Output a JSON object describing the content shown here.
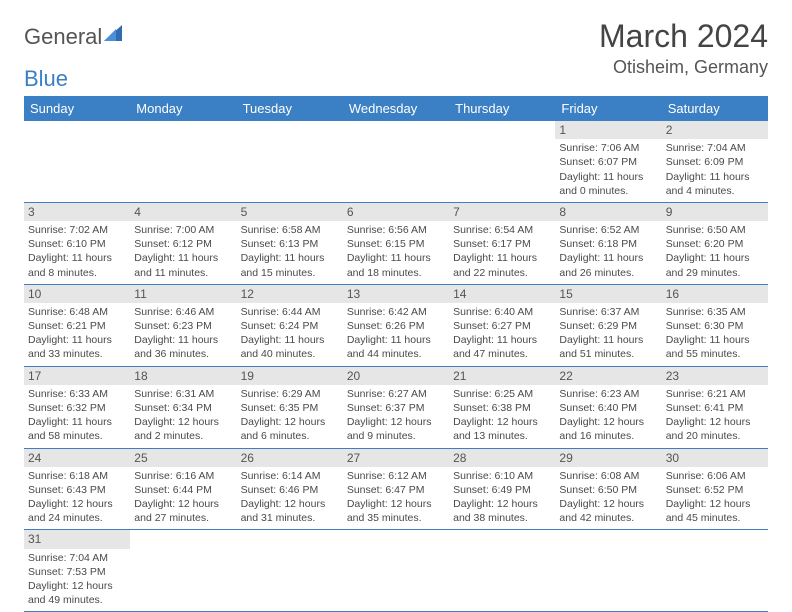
{
  "brand": {
    "text1": "General",
    "text2": "Blue"
  },
  "title": "March 2024",
  "location": "Otisheim, Germany",
  "colors": {
    "header_bg": "#3b7fc4",
    "header_fg": "#ffffff",
    "daynum_bg": "#e6e6e6",
    "row_divider": "#3b7fc4",
    "text": "#4a4a4a"
  },
  "weekdays": [
    "Sunday",
    "Monday",
    "Tuesday",
    "Wednesday",
    "Thursday",
    "Friday",
    "Saturday"
  ],
  "weeks": [
    [
      null,
      null,
      null,
      null,
      null,
      {
        "n": "1",
        "sunrise": "7:06 AM",
        "sunset": "6:07 PM",
        "day_h": "11",
        "day_m": "0"
      },
      {
        "n": "2",
        "sunrise": "7:04 AM",
        "sunset": "6:09 PM",
        "day_h": "11",
        "day_m": "4"
      }
    ],
    [
      {
        "n": "3",
        "sunrise": "7:02 AM",
        "sunset": "6:10 PM",
        "day_h": "11",
        "day_m": "8"
      },
      {
        "n": "4",
        "sunrise": "7:00 AM",
        "sunset": "6:12 PM",
        "day_h": "11",
        "day_m": "11"
      },
      {
        "n": "5",
        "sunrise": "6:58 AM",
        "sunset": "6:13 PM",
        "day_h": "11",
        "day_m": "15"
      },
      {
        "n": "6",
        "sunrise": "6:56 AM",
        "sunset": "6:15 PM",
        "day_h": "11",
        "day_m": "18"
      },
      {
        "n": "7",
        "sunrise": "6:54 AM",
        "sunset": "6:17 PM",
        "day_h": "11",
        "day_m": "22"
      },
      {
        "n": "8",
        "sunrise": "6:52 AM",
        "sunset": "6:18 PM",
        "day_h": "11",
        "day_m": "26"
      },
      {
        "n": "9",
        "sunrise": "6:50 AM",
        "sunset": "6:20 PM",
        "day_h": "11",
        "day_m": "29"
      }
    ],
    [
      {
        "n": "10",
        "sunrise": "6:48 AM",
        "sunset": "6:21 PM",
        "day_h": "11",
        "day_m": "33"
      },
      {
        "n": "11",
        "sunrise": "6:46 AM",
        "sunset": "6:23 PM",
        "day_h": "11",
        "day_m": "36"
      },
      {
        "n": "12",
        "sunrise": "6:44 AM",
        "sunset": "6:24 PM",
        "day_h": "11",
        "day_m": "40"
      },
      {
        "n": "13",
        "sunrise": "6:42 AM",
        "sunset": "6:26 PM",
        "day_h": "11",
        "day_m": "44"
      },
      {
        "n": "14",
        "sunrise": "6:40 AM",
        "sunset": "6:27 PM",
        "day_h": "11",
        "day_m": "47"
      },
      {
        "n": "15",
        "sunrise": "6:37 AM",
        "sunset": "6:29 PM",
        "day_h": "11",
        "day_m": "51"
      },
      {
        "n": "16",
        "sunrise": "6:35 AM",
        "sunset": "6:30 PM",
        "day_h": "11",
        "day_m": "55"
      }
    ],
    [
      {
        "n": "17",
        "sunrise": "6:33 AM",
        "sunset": "6:32 PM",
        "day_h": "11",
        "day_m": "58"
      },
      {
        "n": "18",
        "sunrise": "6:31 AM",
        "sunset": "6:34 PM",
        "day_h": "12",
        "day_m": "2"
      },
      {
        "n": "19",
        "sunrise": "6:29 AM",
        "sunset": "6:35 PM",
        "day_h": "12",
        "day_m": "6"
      },
      {
        "n": "20",
        "sunrise": "6:27 AM",
        "sunset": "6:37 PM",
        "day_h": "12",
        "day_m": "9"
      },
      {
        "n": "21",
        "sunrise": "6:25 AM",
        "sunset": "6:38 PM",
        "day_h": "12",
        "day_m": "13"
      },
      {
        "n": "22",
        "sunrise": "6:23 AM",
        "sunset": "6:40 PM",
        "day_h": "12",
        "day_m": "16"
      },
      {
        "n": "23",
        "sunrise": "6:21 AM",
        "sunset": "6:41 PM",
        "day_h": "12",
        "day_m": "20"
      }
    ],
    [
      {
        "n": "24",
        "sunrise": "6:18 AM",
        "sunset": "6:43 PM",
        "day_h": "12",
        "day_m": "24"
      },
      {
        "n": "25",
        "sunrise": "6:16 AM",
        "sunset": "6:44 PM",
        "day_h": "12",
        "day_m": "27"
      },
      {
        "n": "26",
        "sunrise": "6:14 AM",
        "sunset": "6:46 PM",
        "day_h": "12",
        "day_m": "31"
      },
      {
        "n": "27",
        "sunrise": "6:12 AM",
        "sunset": "6:47 PM",
        "day_h": "12",
        "day_m": "35"
      },
      {
        "n": "28",
        "sunrise": "6:10 AM",
        "sunset": "6:49 PM",
        "day_h": "12",
        "day_m": "38"
      },
      {
        "n": "29",
        "sunrise": "6:08 AM",
        "sunset": "6:50 PM",
        "day_h": "12",
        "day_m": "42"
      },
      {
        "n": "30",
        "sunrise": "6:06 AM",
        "sunset": "6:52 PM",
        "day_h": "12",
        "day_m": "45"
      }
    ],
    [
      {
        "n": "31",
        "sunrise": "7:04 AM",
        "sunset": "7:53 PM",
        "day_h": "12",
        "day_m": "49"
      },
      null,
      null,
      null,
      null,
      null,
      null
    ]
  ]
}
